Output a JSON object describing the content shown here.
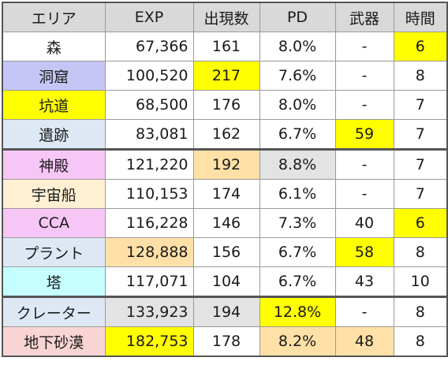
{
  "colors": {
    "header": "#d9d9d9",
    "yellow": "#ffff00",
    "orange": "#ffe0a6",
    "gray": "#e3e3e3",
    "lavender": "#c6c6f6",
    "lightblue": "#dde8f4",
    "pink": "#f6c6f6",
    "cream": "#fff0d4",
    "cyan": "#c6ffff",
    "rose": "#f8d4d4",
    "white": "#ffffff"
  },
  "headers": [
    "エリア",
    "EXP",
    "出現数",
    "PD",
    "武器",
    "時間"
  ],
  "rows": [
    {
      "area": "森",
      "exp": "67,366",
      "count": "161",
      "pd": "8.0%",
      "weapon": "-",
      "time": "6",
      "fill": {
        "area": "white",
        "exp": "white",
        "count": "white",
        "pd": "white",
        "weapon": "white",
        "time": "yellow"
      }
    },
    {
      "area": "洞窟",
      "exp": "100,520",
      "count": "217",
      "pd": "7.6%",
      "weapon": "-",
      "time": "8",
      "fill": {
        "area": "lavender",
        "exp": "white",
        "count": "yellow",
        "pd": "white",
        "weapon": "white",
        "time": "white"
      }
    },
    {
      "area": "坑道",
      "exp": "68,500",
      "count": "176",
      "pd": "8.0%",
      "weapon": "-",
      "time": "7",
      "fill": {
        "area": "yellow",
        "exp": "white",
        "count": "white",
        "pd": "white",
        "weapon": "white",
        "time": "white"
      }
    },
    {
      "area": "遺跡",
      "exp": "83,081",
      "count": "162",
      "pd": "6.7%",
      "weapon": "59",
      "time": "7",
      "fill": {
        "area": "lightblue",
        "exp": "white",
        "count": "white",
        "pd": "white",
        "weapon": "yellow",
        "time": "white"
      }
    },
    {
      "area": "神殿",
      "exp": "121,220",
      "count": "192",
      "pd": "8.8%",
      "weapon": "-",
      "time": "7",
      "group_start": true,
      "fill": {
        "area": "pink",
        "exp": "white",
        "count": "orange",
        "pd": "gray",
        "weapon": "white",
        "time": "white"
      }
    },
    {
      "area": "宇宙船",
      "exp": "110,153",
      "count": "174",
      "pd": "6.1%",
      "weapon": "-",
      "time": "7",
      "fill": {
        "area": "cream",
        "exp": "white",
        "count": "white",
        "pd": "white",
        "weapon": "white",
        "time": "white"
      }
    },
    {
      "area": "CCA",
      "exp": "116,228",
      "count": "146",
      "pd": "7.3%",
      "weapon": "40",
      "time": "6",
      "fill": {
        "area": "pink",
        "exp": "white",
        "count": "white",
        "pd": "white",
        "weapon": "white",
        "time": "yellow"
      }
    },
    {
      "area": "プラント",
      "exp": "128,888",
      "count": "156",
      "pd": "6.7%",
      "weapon": "58",
      "time": "8",
      "fill": {
        "area": "lightblue",
        "exp": "orange",
        "count": "white",
        "pd": "white",
        "weapon": "yellow",
        "time": "white"
      }
    },
    {
      "area": "塔",
      "exp": "117,071",
      "count": "104",
      "pd": "6.7%",
      "weapon": "43",
      "time": "10",
      "fill": {
        "area": "cyan",
        "exp": "white",
        "count": "white",
        "pd": "white",
        "weapon": "white",
        "time": "white"
      }
    },
    {
      "area": "クレーター",
      "exp": "133,923",
      "count": "194",
      "pd": "12.8%",
      "weapon": "-",
      "time": "8",
      "group_start": true,
      "fill": {
        "area": "lightblue",
        "exp": "gray",
        "count": "gray",
        "pd": "yellow",
        "weapon": "white",
        "time": "white"
      }
    },
    {
      "area": "地下砂漠",
      "exp": "182,753",
      "count": "178",
      "pd": "8.2%",
      "weapon": "48",
      "time": "8",
      "fill": {
        "area": "rose",
        "exp": "yellow",
        "count": "white",
        "pd": "orange",
        "weapon": "orange",
        "time": "white"
      }
    }
  ]
}
